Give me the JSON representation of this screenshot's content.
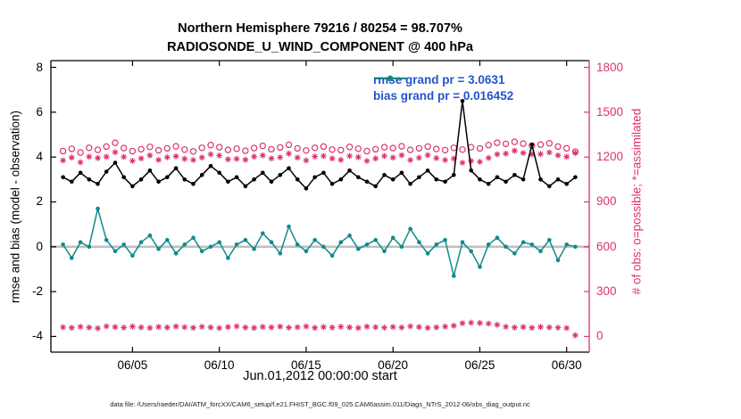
{
  "figure": {
    "title_line1": "Northern Hemisphere 79216 / 80254 = 98.707%",
    "title_line2": "RADIOSONDE_U_WIND_COMPONENT @ 400 hPa",
    "xlabel": "Jun.01,2012 00:00:00 start",
    "ylabel_left": "rmse and bias (model - observation)",
    "ylabel_right": "# of obs: o=possible; *=assimilated",
    "caption": "data file: /Users/raeder/DAI/ATM_forcXX/CAM6_setup/f.e21.FHIST_BGC.f09_025.CAM6assim.011/Diags_NTrS_2012-06/obs_diag_output.nc",
    "legend": [
      {
        "label": "rmse grand pr = 3.0631",
        "color_key": "black"
      },
      {
        "label": "bias grand pr = 0.016452",
        "color_key": "teal"
      }
    ]
  },
  "colors": {
    "black": "#000000",
    "teal": "#0f8b8b",
    "pink": "#dd3368",
    "blue": "#2255cc",
    "gray": "#c0c0c0"
  },
  "chart_data": {
    "type": "line",
    "title": "Northern Hemisphere 79216 / 80254 = 98.707% | RADIOSONDE_U_WIND_COMPONENT @ 400 hPa",
    "xlabel": "Jun.01,2012 00:00:00 start",
    "ylabel_left": "rmse and bias (model - observation)",
    "ylabel_right": "# of obs: o=possible; *=assimilated",
    "x_start_day": 1,
    "x_step_days": 0.5,
    "xlim": [
      0.3,
      31.3
    ],
    "ylim_left": [
      -4.7,
      8.3
    ],
    "ylim_right": [
      -105,
      1845
    ],
    "x_ticks": [
      {
        "value": 5,
        "label": "06/05"
      },
      {
        "value": 10,
        "label": "06/10"
      },
      {
        "value": 15,
        "label": "06/15"
      },
      {
        "value": 20,
        "label": "06/20"
      },
      {
        "value": 25,
        "label": "06/25"
      },
      {
        "value": 30,
        "label": "06/30"
      }
    ],
    "y_ticks_left": [
      -4,
      -2,
      0,
      2,
      4,
      6,
      8
    ],
    "y_ticks_right": [
      0,
      300,
      600,
      900,
      1200,
      1500,
      1800
    ],
    "grid": false,
    "legend_position": "top-center-inside",
    "zero_line_left_axis": 0,
    "series": [
      {
        "name": "rmse",
        "axis": "left",
        "color_key": "black",
        "marker": "dot",
        "line": true,
        "grand_value": 3.0631,
        "values": [
          3.1,
          2.9,
          3.3,
          3.0,
          2.8,
          3.35,
          3.75,
          3.1,
          2.7,
          3.0,
          3.4,
          2.9,
          3.1,
          3.5,
          3.0,
          2.8,
          3.2,
          3.6,
          3.3,
          2.9,
          3.1,
          2.7,
          3.0,
          3.3,
          2.9,
          3.2,
          3.5,
          3.0,
          2.6,
          3.1,
          3.3,
          2.8,
          3.0,
          3.4,
          3.1,
          2.9,
          2.7,
          3.2,
          3.0,
          3.3,
          2.8,
          3.1,
          3.4,
          3.0,
          2.9,
          3.2,
          6.5,
          3.4,
          3.0,
          2.8,
          3.1,
          2.9,
          3.2,
          3.0,
          4.55,
          3.0,
          2.7,
          3.0,
          2.8,
          3.1
        ]
      },
      {
        "name": "bias",
        "axis": "left",
        "color_key": "teal",
        "marker": "dot",
        "line": true,
        "grand_value": 0.016452,
        "values": [
          0.1,
          -0.5,
          0.2,
          0.0,
          1.7,
          0.3,
          -0.2,
          0.1,
          -0.4,
          0.2,
          0.5,
          -0.1,
          0.3,
          -0.3,
          0.1,
          0.4,
          -0.2,
          0.0,
          0.2,
          -0.5,
          0.1,
          0.3,
          -0.1,
          0.6,
          0.2,
          -0.3,
          0.9,
          0.1,
          -0.2,
          0.3,
          0.0,
          -0.4,
          0.2,
          0.5,
          -0.1,
          0.1,
          0.3,
          -0.2,
          0.4,
          0.0,
          0.8,
          0.2,
          -0.3,
          0.1,
          0.3,
          -1.3,
          0.2,
          -0.2,
          -0.9,
          0.1,
          0.4,
          0.0,
          -0.3,
          0.2,
          0.1,
          -0.2,
          0.3,
          -0.6,
          0.1,
          0.0
        ]
      },
      {
        "name": "obs_possible",
        "axis": "right",
        "color_key": "pink",
        "marker": "circle",
        "line": false,
        "values": [
          1240,
          1255,
          1230,
          1262,
          1248,
          1270,
          1295,
          1260,
          1240,
          1252,
          1268,
          1245,
          1258,
          1272,
          1250,
          1238,
          1262,
          1280,
          1266,
          1248,
          1256,
          1242,
          1260,
          1275,
          1252,
          1264,
          1282,
          1258,
          1244,
          1262,
          1270,
          1250,
          1246,
          1268,
          1256,
          1240,
          1252,
          1266,
          1260,
          1272,
          1248,
          1258,
          1270,
          1254,
          1246,
          1262,
          1250,
          1266,
          1258,
          1280,
          1296,
          1288,
          1302,
          1290,
          1276,
          1284,
          1292,
          1270,
          1258,
          1236
        ]
      },
      {
        "name": "obs_assimilated",
        "axis": "right",
        "color_key": "pink",
        "marker": "asterisk",
        "line": false,
        "values": [
          1178,
          1197,
          1165,
          1202,
          1193,
          1202,
          1232,
          1201,
          1174,
          1191,
          1211,
          1181,
          1198,
          1205,
          1188,
          1180,
          1197,
          1219,
          1210,
          1185,
          1188,
          1182,
          1203,
          1211,
          1191,
          1198,
          1223,
          1196,
          1177,
          1204,
          1207,
          1190,
          1181,
          1207,
          1199,
          1174,
          1190,
          1207,
          1196,
          1212,
          1180,
          1195,
          1213,
          1193,
          1180,
          1190,
          1162,
          1174,
          1168,
          1194,
          1218,
          1223,
          1242,
          1227,
          1218,
          1220,
          1231,
          1211,
          1202,
          1228
        ]
      },
      {
        "name": "obs_bottom_row",
        "axis": "right",
        "color_key": "pink",
        "marker": "asterisk",
        "line": false,
        "values": [
          62,
          58,
          65,
          60,
          55,
          68,
          63,
          59,
          66,
          61,
          57,
          64,
          60,
          67,
          62,
          58,
          65,
          61,
          56,
          63,
          68,
          60,
          57,
          64,
          61,
          66,
          59,
          62,
          67,
          58,
          63,
          60,
          65,
          61,
          57,
          66,
          62,
          59,
          64,
          60,
          68,
          63,
          57,
          61,
          66,
          72,
          88,
          92,
          90,
          86,
          78,
          65,
          60,
          63,
          58,
          64,
          61,
          59,
          56,
          8
        ]
      }
    ]
  }
}
